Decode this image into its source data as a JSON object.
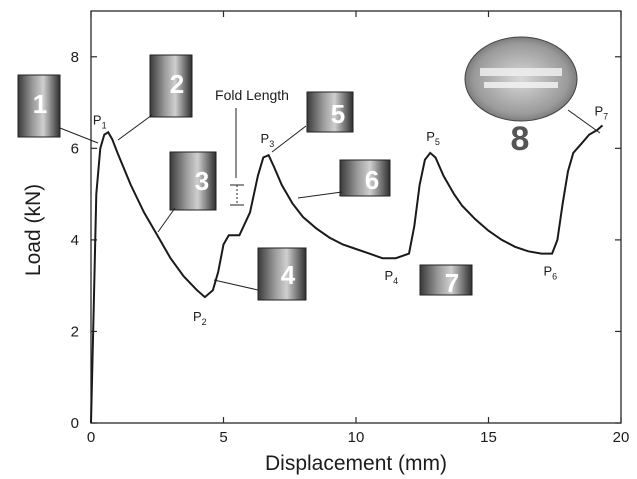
{
  "chart_data": {
    "type": "line",
    "xlabel": "Displacement (mm)",
    "ylabel": "Load (kN)",
    "xlim": [
      0,
      20
    ],
    "ylim": [
      0,
      9
    ],
    "x_ticks": [
      0,
      5,
      10,
      15,
      20
    ],
    "y_ticks": [
      0,
      2,
      4,
      6,
      8
    ],
    "grid": false,
    "series": [
      {
        "points": [
          [
            0.0,
            0.0
          ],
          [
            0.1,
            2.5
          ],
          [
            0.2,
            5.0
          ],
          [
            0.35,
            6.0
          ],
          [
            0.5,
            6.3
          ],
          [
            0.65,
            6.35
          ],
          [
            0.8,
            6.2
          ],
          [
            1.0,
            5.9
          ],
          [
            1.5,
            5.2
          ],
          [
            2.0,
            4.6
          ],
          [
            2.5,
            4.1
          ],
          [
            3.0,
            3.6
          ],
          [
            3.5,
            3.2
          ],
          [
            4.0,
            2.9
          ],
          [
            4.3,
            2.75
          ],
          [
            4.6,
            2.9
          ],
          [
            4.8,
            3.3
          ],
          [
            5.0,
            3.9
          ],
          [
            5.2,
            4.1
          ],
          [
            5.6,
            4.1
          ],
          [
            6.0,
            4.6
          ],
          [
            6.3,
            5.4
          ],
          [
            6.5,
            5.8
          ],
          [
            6.7,
            5.85
          ],
          [
            6.9,
            5.6
          ],
          [
            7.2,
            5.2
          ],
          [
            7.6,
            4.8
          ],
          [
            8.0,
            4.5
          ],
          [
            8.5,
            4.25
          ],
          [
            9.0,
            4.05
          ],
          [
            9.5,
            3.9
          ],
          [
            10.0,
            3.8
          ],
          [
            10.5,
            3.7
          ],
          [
            11.0,
            3.6
          ],
          [
            11.5,
            3.6
          ],
          [
            12.0,
            3.7
          ],
          [
            12.2,
            4.3
          ],
          [
            12.4,
            5.2
          ],
          [
            12.6,
            5.75
          ],
          [
            12.8,
            5.9
          ],
          [
            13.0,
            5.8
          ],
          [
            13.3,
            5.4
          ],
          [
            13.7,
            5.0
          ],
          [
            14.0,
            4.75
          ],
          [
            14.5,
            4.45
          ],
          [
            15.0,
            4.2
          ],
          [
            15.5,
            4.0
          ],
          [
            16.0,
            3.85
          ],
          [
            16.5,
            3.75
          ],
          [
            17.0,
            3.7
          ],
          [
            17.4,
            3.7
          ],
          [
            17.6,
            4.0
          ],
          [
            17.8,
            4.8
          ],
          [
            18.0,
            5.5
          ],
          [
            18.2,
            5.9
          ],
          [
            18.5,
            6.1
          ],
          [
            18.8,
            6.3
          ],
          [
            19.1,
            6.4
          ],
          [
            19.3,
            6.5
          ]
        ]
      }
    ],
    "peaks": [
      {
        "main": "P",
        "sub": "1",
        "x": 0.6,
        "y": 6.35
      },
      {
        "main": "P",
        "sub": "2",
        "x": 4.3,
        "y": 2.75
      },
      {
        "main": "P",
        "sub": "3",
        "x": 6.7,
        "y": 5.85
      },
      {
        "main": "P",
        "sub": "4",
        "x": 11.3,
        "y": 3.6
      },
      {
        "main": "P",
        "sub": "5",
        "x": 12.8,
        "y": 5.9
      },
      {
        "main": "P",
        "sub": "6",
        "x": 17.3,
        "y": 3.7
      },
      {
        "main": "P",
        "sub": "7",
        "x": 19.3,
        "y": 6.5
      }
    ],
    "stage_labels": [
      "1",
      "2",
      "3",
      "4",
      "5",
      "6",
      "7",
      "8"
    ],
    "annotation": "Fold Length"
  }
}
